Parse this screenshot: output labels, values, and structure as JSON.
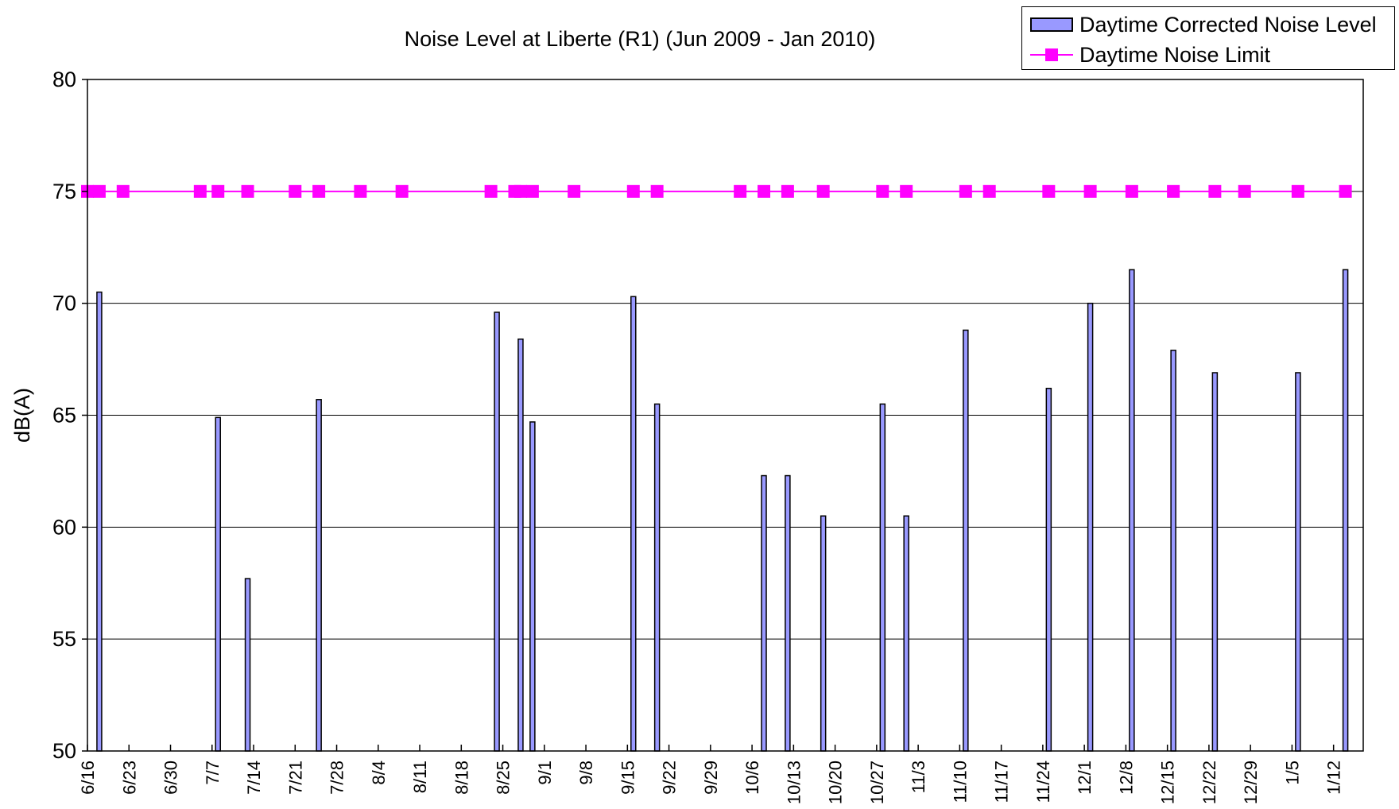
{
  "chart_data": {
    "type": "bar",
    "title": "Noise Level at Liberte (R1) (Jun 2009 - Jan 2010)",
    "xlabel": "",
    "ylabel": "dB(A)",
    "ylim": [
      50,
      80
    ],
    "yticks": [
      50,
      55,
      60,
      65,
      70,
      75,
      80
    ],
    "grid": "horizontal",
    "legend_position": "top-right",
    "x_start_date": "2009-06-16",
    "x_end_date": "2010-01-17",
    "x_tick_labels": [
      "6/16",
      "6/23",
      "6/30",
      "7/7",
      "7/14",
      "7/21",
      "7/28",
      "8/4",
      "8/11",
      "8/18",
      "8/25",
      "9/1",
      "9/8",
      "9/15",
      "9/22",
      "9/29",
      "10/6",
      "10/13",
      "10/20",
      "10/27",
      "11/3",
      "11/10",
      "11/17",
      "11/24",
      "12/1",
      "12/8",
      "12/15",
      "12/22",
      "12/29",
      "1/5",
      "1/12"
    ],
    "series": [
      {
        "name": "Daytime Corrected Noise Level",
        "type": "bar",
        "color": "#9999ff",
        "border": "#000000",
        "x": [
          "2009-06-18",
          "2009-07-08",
          "2009-07-13",
          "2009-07-25",
          "2009-08-24",
          "2009-08-28",
          "2009-08-30",
          "2009-09-16",
          "2009-09-20",
          "2009-10-08",
          "2009-10-12",
          "2009-10-18",
          "2009-10-28",
          "2009-11-01",
          "2009-11-11",
          "2009-11-25",
          "2009-12-02",
          "2009-12-09",
          "2009-12-16",
          "2009-12-23",
          "2010-01-06",
          "2010-01-14"
        ],
        "values": [
          70.5,
          64.9,
          57.7,
          65.7,
          69.6,
          68.4,
          64.7,
          70.3,
          65.5,
          62.3,
          62.3,
          60.5,
          65.5,
          60.5,
          68.8,
          66.2,
          70.0,
          71.5,
          67.9,
          66.9,
          66.9,
          71.5
        ]
      },
      {
        "name": "Daytime Noise Limit",
        "type": "line",
        "color": "#ff00ff",
        "marker": "square",
        "x": [
          "2009-06-16",
          "2009-06-18",
          "2009-06-22",
          "2009-07-05",
          "2009-07-08",
          "2009-07-13",
          "2009-07-21",
          "2009-07-25",
          "2009-08-01",
          "2009-08-08",
          "2009-08-23",
          "2009-08-27",
          "2009-08-28",
          "2009-08-30",
          "2009-09-06",
          "2009-09-16",
          "2009-09-20",
          "2009-10-04",
          "2009-10-08",
          "2009-10-12",
          "2009-10-18",
          "2009-10-28",
          "2009-11-01",
          "2009-11-11",
          "2009-11-15",
          "2009-11-25",
          "2009-12-02",
          "2009-12-09",
          "2009-12-16",
          "2009-12-23",
          "2009-12-28",
          "2010-01-06",
          "2010-01-14"
        ],
        "values": [
          75,
          75,
          75,
          75,
          75,
          75,
          75,
          75,
          75,
          75,
          75,
          75,
          75,
          75,
          75,
          75,
          75,
          75,
          75,
          75,
          75,
          75,
          75,
          75,
          75,
          75,
          75,
          75,
          75,
          75,
          75,
          75,
          75
        ]
      }
    ]
  }
}
